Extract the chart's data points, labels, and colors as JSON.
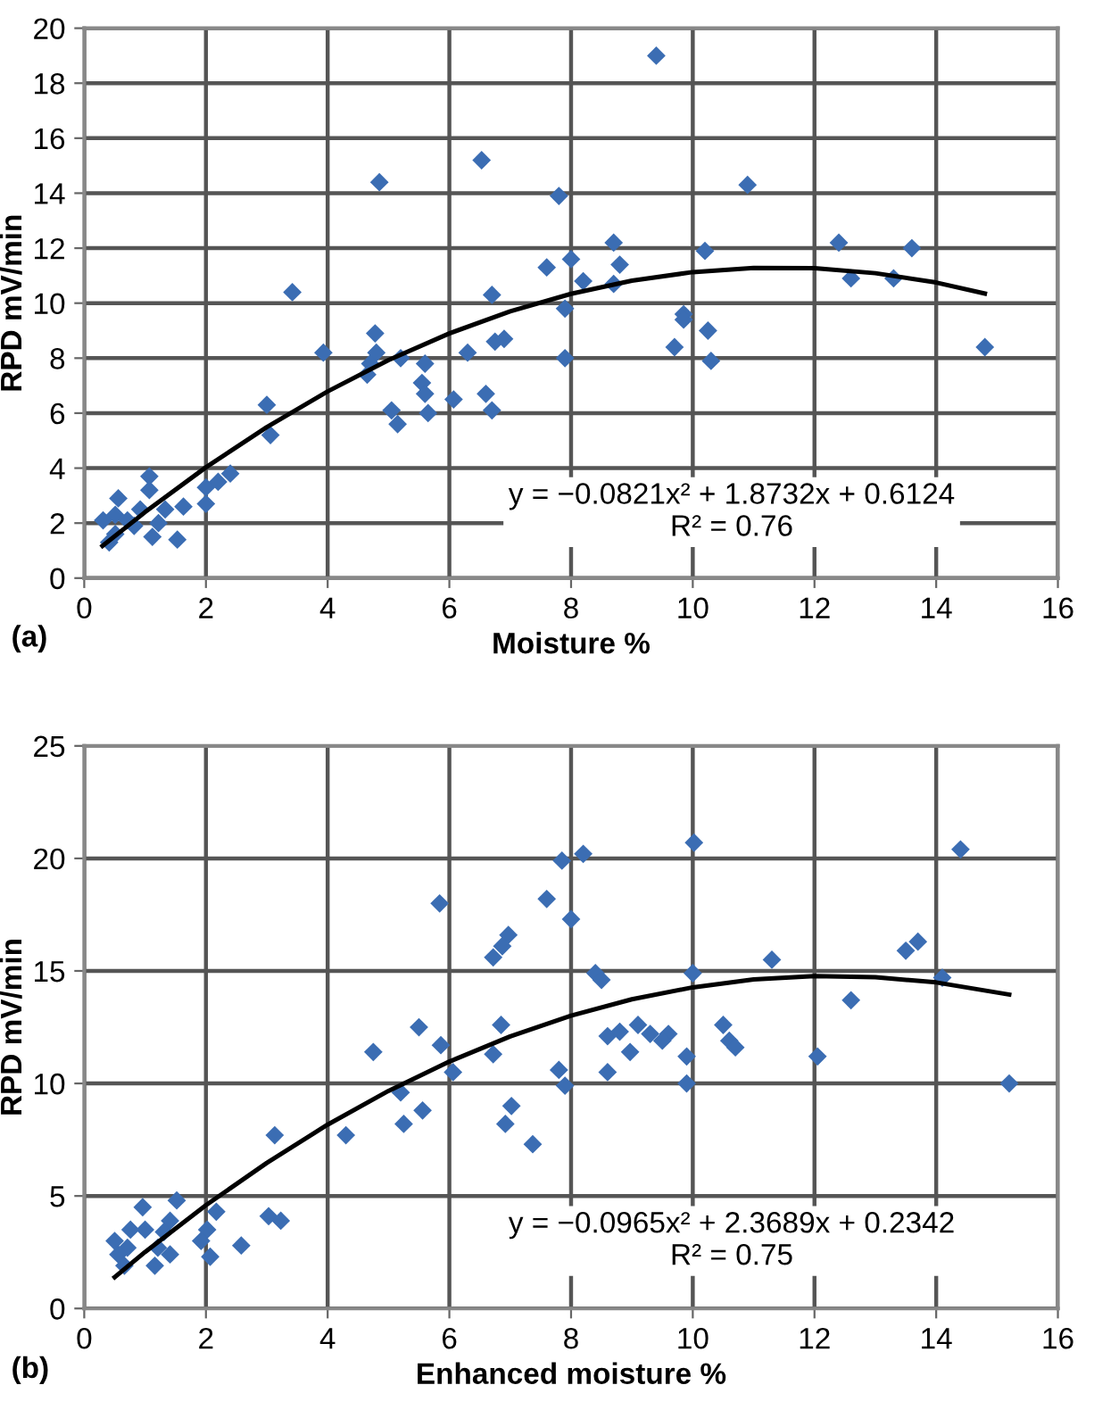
{
  "chart_data": [
    {
      "type": "scatter",
      "xlabel": "Moisture %",
      "ylabel": "RPD mV/min",
      "xlim": [
        0,
        16
      ],
      "ylim": [
        0,
        20
      ],
      "xticks": [
        0,
        2,
        4,
        6,
        8,
        10,
        12,
        14,
        16
      ],
      "yticks": [
        0,
        2,
        4,
        6,
        8,
        10,
        12,
        14,
        16,
        18,
        20
      ],
      "grid": true,
      "legend": false,
      "marker": "diamond",
      "annotations": [
        "(a)",
        "y = −0.0821x² + 1.8732x + 0.6124\nR² = 0.76"
      ],
      "series": [
        {
          "color": "#3b6db3",
          "x": [
            7.8,
            9.4,
            10.9,
            8.7,
            8.8,
            8.7,
            7.6,
            8.0,
            8.2,
            7.9,
            7.9,
            10.2,
            9.85,
            9.85,
            10.25,
            9.7,
            10.3,
            12.4,
            12.6,
            13.3,
            13.6,
            14.8,
            3.42,
            3.93,
            4.85,
            6.53,
            6.7,
            4.78,
            4.8,
            4.7,
            4.65,
            5.2,
            5.6,
            5.55,
            5.6,
            5.05,
            5.15,
            5.65,
            6.07,
            6.3,
            6.6,
            6.7,
            6.75,
            6.9,
            3.0,
            3.06,
            2.4,
            2.2,
            2.0,
            2.0,
            1.53,
            1.63,
            1.07,
            1.07,
            0.92,
            0.51,
            0.51,
            0.41,
            0.31,
            0.56,
            1.22,
            1.33,
            0.82,
            1.12,
            0.71
          ],
          "values": [
            13.9,
            19.0,
            14.3,
            12.2,
            11.4,
            10.7,
            11.3,
            11.6,
            10.8,
            9.8,
            8.0,
            11.9,
            9.6,
            9.4,
            9.0,
            8.4,
            7.9,
            12.2,
            10.9,
            10.9,
            12.0,
            8.4,
            10.4,
            8.2,
            14.4,
            15.2,
            10.3,
            8.9,
            8.2,
            7.8,
            7.4,
            8.0,
            7.8,
            7.1,
            6.7,
            6.1,
            5.6,
            6.0,
            6.5,
            8.2,
            6.7,
            6.1,
            8.6,
            8.7,
            6.3,
            5.2,
            3.8,
            3.5,
            3.3,
            2.7,
            1.4,
            2.6,
            3.7,
            3.2,
            2.5,
            2.3,
            1.6,
            1.3,
            2.1,
            2.9,
            2.0,
            2.5,
            1.9,
            1.5,
            2.1
          ]
        },
        {
          "type": "line",
          "color": "#000000",
          "marker": "none",
          "x": [
            0.3,
            1,
            2,
            3,
            4,
            5,
            6,
            7,
            8,
            9,
            10,
            11,
            12,
            13,
            14,
            14.8
          ],
          "values": [
            1.17,
            2.4,
            4.03,
            5.49,
            6.79,
            7.93,
            8.9,
            9.7,
            10.34,
            10.82,
            11.13,
            11.28,
            11.27,
            11.09,
            10.75,
            10.35
          ]
        }
      ]
    },
    {
      "type": "scatter",
      "xlabel": "Enhanced moisture %",
      "ylabel": "RPD mV/min",
      "xlim": [
        0,
        16
      ],
      "ylim": [
        0,
        25
      ],
      "xticks": [
        0,
        2,
        4,
        6,
        8,
        10,
        12,
        14,
        16
      ],
      "yticks": [
        0,
        5,
        10,
        15,
        20,
        25
      ],
      "grid": true,
      "legend": false,
      "marker": "diamond",
      "annotations": [
        "(b)",
        "y = −0.0965x² + 2.3689x + 0.2342\nR² = 0.75"
      ],
      "series": [
        {
          "color": "#3b6db3",
          "x": [
            5.84,
            6.97,
            6.87,
            6.72,
            6.85,
            6.72,
            5.5,
            5.86,
            6.06,
            4.75,
            5.2,
            5.25,
            5.56,
            7.02,
            6.92,
            7.37,
            4.3,
            3.13,
            3.03,
            3.23,
            2.58,
            2.17,
            2.02,
            1.92,
            2.07,
            1.52,
            1.41,
            1.31,
            1.41,
            1.16,
            1.0,
            0.96,
            0.76,
            0.71,
            0.56,
            0.5,
            0.66,
            1.21,
            10.02,
            14.4,
            7.85,
            8.2,
            7.6,
            8.0,
            8.4,
            8.5,
            10.0,
            11.3,
            13.5,
            13.7,
            14.1,
            12.6,
            8.6,
            8.8,
            9.1,
            9.3,
            9.6,
            8.97,
            9.5,
            10.5,
            10.6,
            10.7,
            9.9,
            12.05,
            7.8,
            7.9,
            8.6,
            9.9,
            15.2
          ],
          "values": [
            18.0,
            16.6,
            16.1,
            15.6,
            12.6,
            11.3,
            12.5,
            11.7,
            10.5,
            11.4,
            9.6,
            8.2,
            8.8,
            9.0,
            8.2,
            7.3,
            7.7,
            7.7,
            4.1,
            3.9,
            2.8,
            4.3,
            3.5,
            3.0,
            2.3,
            4.8,
            3.9,
            3.4,
            2.4,
            1.9,
            3.5,
            4.5,
            3.5,
            2.7,
            2.4,
            3.0,
            1.9,
            2.7,
            20.7,
            20.4,
            19.9,
            20.2,
            18.2,
            17.3,
            14.9,
            14.6,
            14.9,
            15.5,
            15.9,
            16.3,
            14.7,
            13.7,
            12.1,
            12.3,
            12.6,
            12.2,
            12.2,
            11.4,
            11.9,
            12.6,
            11.9,
            11.6,
            11.2,
            11.2,
            10.6,
            9.9,
            10.5,
            10.0,
            10.0
          ]
        },
        {
          "type": "line",
          "color": "#000000",
          "marker": "none",
          "x": [
            0.5,
            1,
            2,
            3,
            4,
            5,
            6,
            7,
            8,
            9,
            10,
            11,
            12,
            13,
            14,
            15.2
          ],
          "values": [
            1.39,
            2.51,
            4.59,
            6.47,
            8.17,
            9.67,
            10.97,
            12.09,
            13.01,
            13.74,
            14.27,
            14.62,
            14.77,
            14.72,
            14.49,
            13.95
          ]
        }
      ]
    }
  ]
}
